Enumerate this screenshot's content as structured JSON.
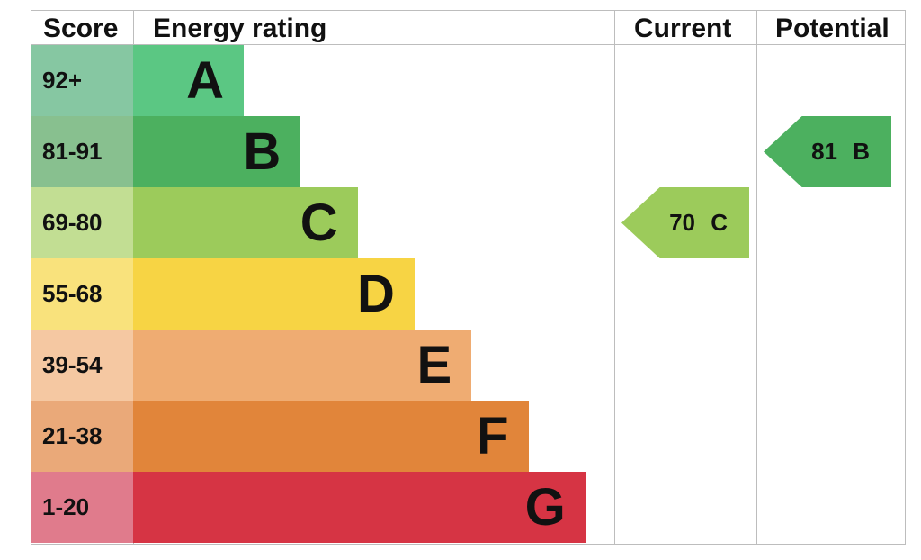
{
  "header": {
    "score": "Score",
    "energy_rating": "Energy rating",
    "current": "Current",
    "potential": "Potential"
  },
  "chart_data": {
    "type": "bar",
    "bands": [
      {
        "letter": "A",
        "range": "92+",
        "color": "#5bc783",
        "score_color": "#86c7a2"
      },
      {
        "letter": "B",
        "range": "81-91",
        "color": "#4cb05f",
        "score_color": "#88c08f"
      },
      {
        "letter": "C",
        "range": "69-80",
        "color": "#9ccb5b",
        "score_color": "#c2de93"
      },
      {
        "letter": "D",
        "range": "55-68",
        "color": "#f7d444",
        "score_color": "#f9e27c"
      },
      {
        "letter": "E",
        "range": "39-54",
        "color": "#efac72",
        "score_color": "#f5c8a2"
      },
      {
        "letter": "F",
        "range": "21-38",
        "color": "#e1853a",
        "score_color": "#eaa979"
      },
      {
        "letter": "G",
        "range": "1-20",
        "color": "#d63444",
        "score_color": "#e07b8c"
      }
    ],
    "current": {
      "value": 70,
      "band": "C",
      "label": "70 C",
      "color": "#9ccb5b"
    },
    "potential": {
      "value": 81,
      "band": "B",
      "label": "81 B",
      "color": "#4cb05f"
    }
  }
}
